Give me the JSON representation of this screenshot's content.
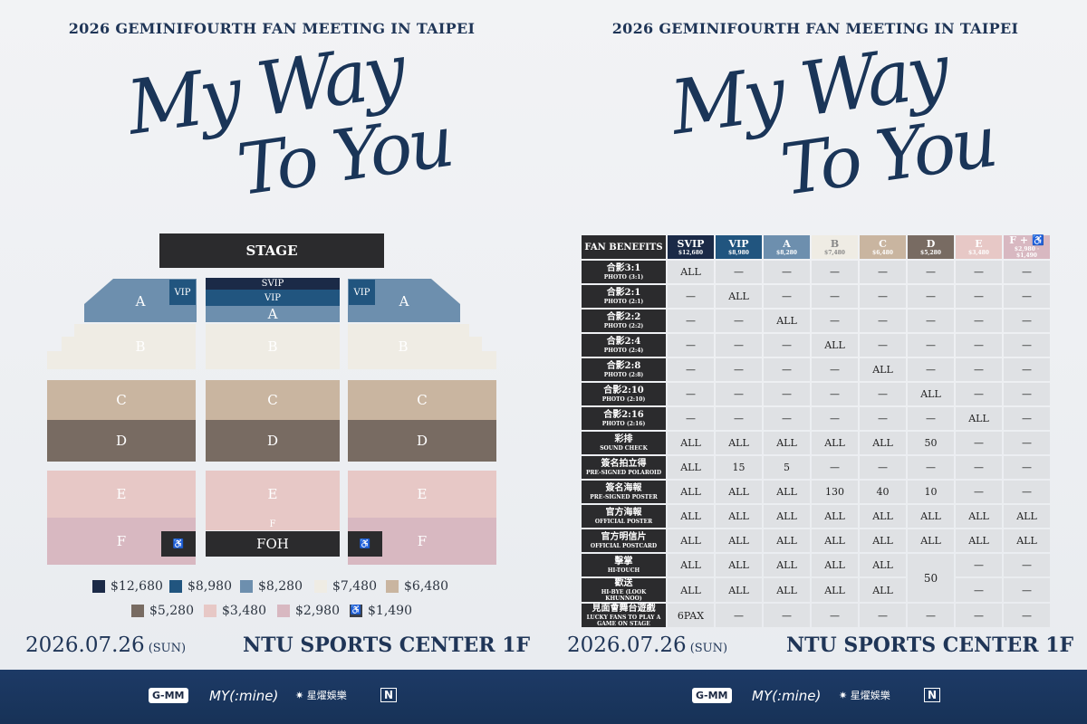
{
  "event_title": "2026  GEMINIFOURTH FAN MEETING IN TAIPEI",
  "script_title": {
    "line1": "My Way",
    "line2": "To You"
  },
  "seating": {
    "stage": "STAGE",
    "svip": "SVIP",
    "vip": "VIP",
    "a": "A",
    "b": "B",
    "c": "C",
    "d": "D",
    "e": "E",
    "f": "F",
    "foh": "FOH",
    "wheelchair": "♿"
  },
  "legend": [
    {
      "price": "$12,680",
      "color": "#1b2a47"
    },
    {
      "price": "$8,980",
      "color": "#21557f"
    },
    {
      "price": "$8,280",
      "color": "#6d8fae"
    },
    {
      "price": "$7,480",
      "color": "#efece4"
    },
    {
      "price": "$6,480",
      "color": "#c9b5a0"
    },
    {
      "price": "$5,280",
      "color": "#786b62"
    },
    {
      "price": "$3,480",
      "color": "#e7c8c6"
    },
    {
      "price": "$2,980",
      "color": "#d8b8c1"
    },
    {
      "price": "$1,490",
      "color": "#3b3e45",
      "icon": "♿"
    }
  ],
  "date": {
    "text": "2026.07.26",
    "dow": "(SUN)"
  },
  "venue": "NTU SPORTS CENTER 1F",
  "logos": {
    "gmm": "G-MM",
    "mymine": "MY(:mine)",
    "star": "✷ 星燿娛樂",
    "n": "N"
  },
  "benefits": {
    "corner": "FAN BENEFITS",
    "columns": [
      {
        "name": "SVIP",
        "price": "$12,680",
        "cls": "h-svip"
      },
      {
        "name": "VIP",
        "price": "$8,980",
        "cls": "h-vip"
      },
      {
        "name": "A",
        "price": "$8,280",
        "cls": "h-a"
      },
      {
        "name": "B",
        "price": "$7,480",
        "cls": "h-b"
      },
      {
        "name": "C",
        "price": "$6,480",
        "cls": "h-c"
      },
      {
        "name": "D",
        "price": "$5,280",
        "cls": "h-d"
      },
      {
        "name": "E",
        "price": "$3,480",
        "cls": "h-e"
      },
      {
        "name": "F + ♿",
        "price": "$2,980 · $1,490",
        "cls": "h-f"
      }
    ],
    "rows": [
      {
        "zh": "合影3:1",
        "en": "PHOTO (3:1)",
        "values": [
          "ALL",
          "—",
          "—",
          "—",
          "—",
          "—",
          "—",
          "—"
        ]
      },
      {
        "zh": "合影2:1",
        "en": "PHOTO (2:1)",
        "values": [
          "—",
          "ALL",
          "—",
          "—",
          "—",
          "—",
          "—",
          "—"
        ]
      },
      {
        "zh": "合影2:2",
        "en": "PHOTO (2:2)",
        "values": [
          "—",
          "—",
          "ALL",
          "—",
          "—",
          "—",
          "—",
          "—"
        ]
      },
      {
        "zh": "合影2:4",
        "en": "PHOTO (2:4)",
        "values": [
          "—",
          "—",
          "—",
          "ALL",
          "—",
          "—",
          "—",
          "—"
        ]
      },
      {
        "zh": "合影2:8",
        "en": "PHOTO (2:8)",
        "values": [
          "—",
          "—",
          "—",
          "—",
          "ALL",
          "—",
          "—",
          "—"
        ]
      },
      {
        "zh": "合影2:10",
        "en": "PHOTO (2:10)",
        "values": [
          "—",
          "—",
          "—",
          "—",
          "—",
          "ALL",
          "—",
          "—"
        ]
      },
      {
        "zh": "合影2:16",
        "en": "PHOTO (2:16)",
        "values": [
          "—",
          "—",
          "—",
          "—",
          "—",
          "—",
          "ALL",
          "—"
        ]
      },
      {
        "zh": "彩排",
        "en": "SOUND CHECK",
        "values": [
          "ALL",
          "ALL",
          "ALL",
          "ALL",
          "ALL",
          "50",
          "—",
          "—"
        ]
      },
      {
        "zh": "簽名拍立得",
        "en": "PRE-SIGNED POLAROID",
        "values": [
          "ALL",
          "15",
          "5",
          "—",
          "—",
          "—",
          "—",
          "—"
        ]
      },
      {
        "zh": "簽名海報",
        "en": "PRE-SIGNED POSTER",
        "values": [
          "ALL",
          "ALL",
          "ALL",
          "130",
          "40",
          "10",
          "—",
          "—"
        ]
      },
      {
        "zh": "官方海報",
        "en": "OFFICIAL POSTER",
        "values": [
          "ALL",
          "ALL",
          "ALL",
          "ALL",
          "ALL",
          "ALL",
          "ALL",
          "ALL"
        ]
      },
      {
        "zh": "官方明信片",
        "en": "OFFICIAL POSTCARD",
        "values": [
          "ALL",
          "ALL",
          "ALL",
          "ALL",
          "ALL",
          "ALL",
          "ALL",
          "ALL"
        ]
      },
      {
        "zh": "擊掌",
        "en": "HI-TOUCH",
        "values": [
          "ALL",
          "ALL",
          "ALL",
          "ALL",
          "ALL",
          "50",
          "—",
          "—"
        ],
        "merge_d": true
      },
      {
        "zh": "歡送",
        "en": "HI-BYE (LOOK KHUNNOO)",
        "values": [
          "ALL",
          "ALL",
          "ALL",
          "ALL",
          "ALL",
          "",
          "—",
          "—"
        ],
        "merged_into_above": true
      },
      {
        "zh": "見面會舞台遊戲",
        "en": "LUCKY FANS TO PLAY A GAME ON STAGE",
        "values": [
          "6PAX",
          "—",
          "—",
          "—",
          "—",
          "—",
          "—",
          "—"
        ]
      }
    ]
  }
}
